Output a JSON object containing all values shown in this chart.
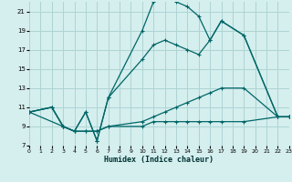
{
  "xlabel": "Humidex (Indice chaleur)",
  "bg_color": "#d5eeee",
  "grid_color": "#aed4d4",
  "line_color": "#006666",
  "xlim": [
    0,
    23
  ],
  "ylim": [
    7,
    22
  ],
  "xticks": [
    0,
    1,
    2,
    3,
    4,
    5,
    6,
    7,
    8,
    9,
    10,
    11,
    12,
    13,
    14,
    15,
    16,
    17,
    18,
    19,
    20,
    21,
    22,
    23
  ],
  "yticks": [
    7,
    9,
    11,
    13,
    15,
    17,
    19,
    21
  ],
  "line1_x": [
    0,
    2,
    3,
    4,
    5,
    6,
    7,
    10,
    11,
    12,
    13,
    14,
    15,
    16,
    17,
    19,
    22,
    23
  ],
  "line1_y": [
    10.5,
    11,
    9,
    8.5,
    10.5,
    7.5,
    12,
    19,
    22,
    22.5,
    22,
    21.5,
    20.5,
    18,
    20,
    18.5,
    10,
    10
  ],
  "line2_x": [
    0,
    2,
    3,
    4,
    5,
    6,
    7,
    10,
    11,
    12,
    13,
    14,
    15,
    16,
    17,
    19,
    22,
    23
  ],
  "line2_y": [
    10.5,
    11,
    9,
    8.5,
    10.5,
    7.5,
    12,
    16,
    17.5,
    18,
    17.5,
    17,
    16.5,
    18,
    20,
    18.5,
    10,
    10
  ],
  "line3_x": [
    0,
    2,
    3,
    4,
    5,
    6,
    7,
    10,
    11,
    12,
    13,
    14,
    15,
    16,
    17,
    19,
    22,
    23
  ],
  "line3_y": [
    10.5,
    11,
    9,
    8.5,
    8.5,
    8.5,
    9,
    9.5,
    10,
    10.5,
    11,
    11.5,
    12,
    12.5,
    13,
    13,
    10,
    10
  ],
  "line4_x": [
    0,
    3,
    4,
    5,
    6,
    7,
    10,
    11,
    12,
    13,
    14,
    15,
    16,
    17,
    19,
    22,
    23
  ],
  "line4_y": [
    10.5,
    9,
    8.5,
    8.5,
    8.5,
    9,
    9,
    9.5,
    9.5,
    9.5,
    9.5,
    9.5,
    9.5,
    9.5,
    9.5,
    10,
    10
  ]
}
